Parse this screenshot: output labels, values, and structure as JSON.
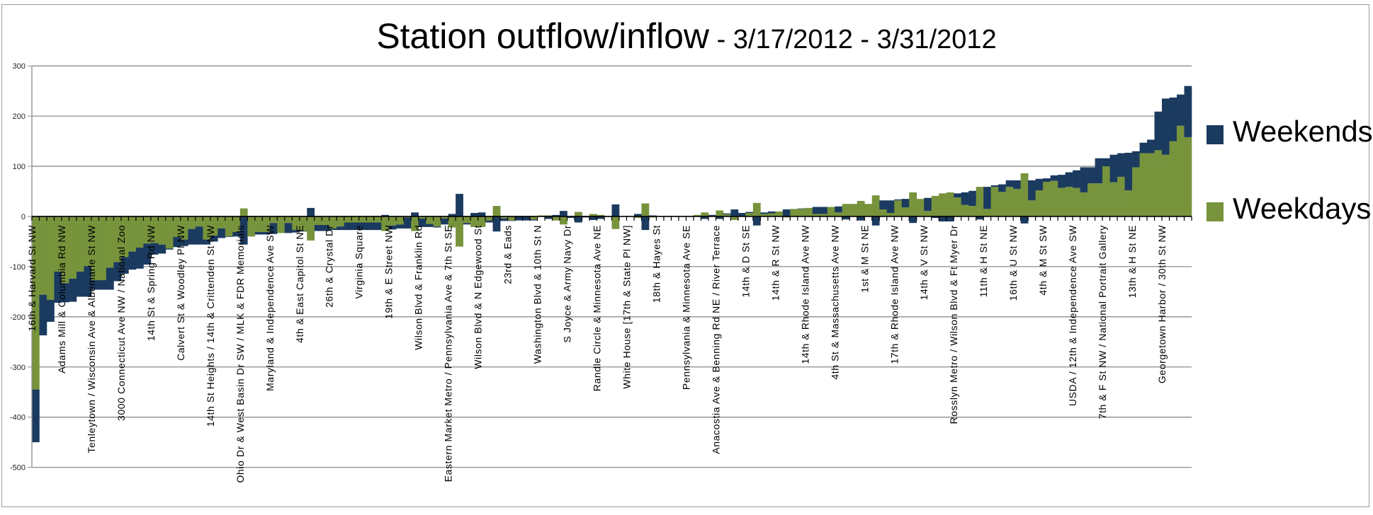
{
  "chart_data": {
    "type": "bar",
    "stacked": true,
    "title": "Station outflow/inflow",
    "subtitle": " - 3/17/2012 - 3/31/2012",
    "xlabel": "",
    "ylabel": "",
    "ylim": [
      -500,
      300
    ],
    "yticks": [
      "300",
      "200",
      "100",
      "0",
      "-100",
      "-200",
      "-300",
      "-400",
      "-500"
    ],
    "ytick_values": [
      300,
      200,
      100,
      0,
      -100,
      -200,
      -300,
      -400,
      -500
    ],
    "grid": true,
    "legend_position": "right",
    "label_every": 4,
    "tick_labels": [
      "16th & Harvard St NW",
      "Adams Mill & Columbia Rd NW",
      "Tenleytown / Wisconsin Ave & Albemarle St NW",
      "3000 Connecticut Ave NW / National Zoo",
      "14th St & Spring Rd NW",
      "Calvert St & Woodley Pl NW",
      "14th St Heights / 14th & Crittenden St NW",
      "Ohio Dr & West Basin Dr SW / MLK & FDR Memorials",
      "Maryland & Independence Ave SW",
      "4th & East Capitol St NE",
      "26th & Crystal Dr",
      "Virginia Square",
      "19th & E Street NW",
      "Wilson Blvd & Franklin Rd",
      "Eastern Market Metro / Pennsylvania Ave & 7th St SE",
      "Wilson Blvd & N Edgewood St",
      "23rd & Eads",
      "Washington Blvd & 10th St N",
      "S Joyce & Army Navy Dr",
      "Randle Circle & Minnesota Ave NE",
      "White House [17th & State Pl NW]",
      "18th & Hayes St",
      "Pennsylvania & Minnesota Ave SE",
      "Anacostia Ave & Benning Rd NE / River Terrace",
      "14th & D St SE",
      "14th & R St NW",
      "14th & Rhode Island Ave NW",
      "4th St & Massachusetts Ave NW",
      "1st & M St NE",
      "17th & Rhode Island Ave NW",
      "14th & V St NW",
      "Rosslyn Metro / Wilson Blvd & Ft Myer Dr",
      "11th & H St NE",
      "16th & U St NW",
      "4th & M St SW",
      "USDA / 12th & Independence Ave SW",
      "7th & F St NW / National Portrait Gallery",
      "13th & H St NE",
      "Georgetown Harbor / 30th St NW"
    ],
    "series": [
      {
        "name": "Weekdays",
        "color": "#77933C",
        "values": [
          -345,
          -156,
          -166,
          -110,
          -133,
          -124,
          -110,
          -99,
          -127,
          -127,
          -102,
          -91,
          -81,
          -70,
          -62,
          -54,
          -53,
          -56,
          -64,
          -41,
          -46,
          -25,
          -20,
          -46,
          -38,
          -24,
          -40,
          -31,
          16,
          -40,
          -31,
          -31,
          -13,
          -33,
          -13,
          -27,
          -29,
          -48,
          -17,
          -17,
          -24,
          -20,
          -12,
          -12,
          -12,
          -12,
          -12,
          -29,
          -18,
          -16,
          -2,
          -29,
          -4,
          -15,
          -20,
          -4,
          -22,
          -60,
          -13,
          -21,
          -21,
          -8,
          21,
          -4,
          -8,
          0,
          0,
          -6,
          2,
          2,
          -8,
          -16,
          -1,
          9,
          0,
          5,
          3,
          0,
          -25,
          0,
          0,
          -3,
          26,
          -2,
          0,
          1,
          0,
          0,
          1,
          3,
          8,
          0,
          12,
          4,
          -7,
          0,
          7,
          27,
          5,
          6,
          10,
          -2,
          15,
          15,
          17,
          5,
          5,
          19,
          8,
          25,
          25,
          31,
          25,
          42,
          14,
          7,
          32,
          18,
          48,
          35,
          11,
          41,
          46,
          48,
          38,
          23,
          21,
          59,
          15,
          59,
          49,
          59,
          55,
          86,
          32,
          52,
          69,
          71,
          57,
          59,
          57,
          48,
          66,
          66,
          100,
          68,
          79,
          52,
          98,
          126,
          126,
          132,
          123,
          150,
          181,
          158
        ]
      },
      {
        "name": "Weekends",
        "color": "#1B3A5F",
        "values": [
          -105,
          -81,
          -44,
          -62,
          -38,
          -46,
          -50,
          -61,
          -19,
          -19,
          -44,
          -38,
          -33,
          -36,
          -42,
          -42,
          -23,
          -18,
          -2,
          -20,
          -13,
          -31,
          -36,
          -10,
          -12,
          -19,
          -1,
          -9,
          -56,
          1,
          -5,
          -5,
          -22,
          0,
          -20,
          -5,
          -1,
          17,
          -12,
          -12,
          -3,
          -7,
          -15,
          -15,
          -15,
          -15,
          -15,
          3,
          -8,
          -8,
          -22,
          8,
          -17,
          -6,
          -2,
          -12,
          5,
          45,
          -3,
          7,
          8,
          -4,
          -30,
          -5,
          -1,
          -8,
          -8,
          -2,
          0,
          -5,
          3,
          11,
          -2,
          -12,
          -2,
          -7,
          -5,
          -1,
          24,
          0,
          0,
          5,
          -27,
          2,
          0,
          0,
          1,
          1,
          0,
          0,
          -5,
          3,
          -5,
          2,
          14,
          7,
          2,
          -18,
          3,
          4,
          0,
          14,
          0,
          1,
          0,
          14,
          14,
          0,
          12,
          -6,
          0,
          -8,
          0,
          -18,
          18,
          25,
          2,
          17,
          -13,
          0,
          26,
          -3,
          -10,
          -10,
          8,
          25,
          30,
          -6,
          44,
          3,
          15,
          13,
          17,
          -14,
          40,
          23,
          7,
          11,
          26,
          29,
          35,
          50,
          32,
          50,
          16,
          55,
          47,
          75,
          32,
          21,
          27,
          77,
          112,
          87,
          62,
          102
        ]
      }
    ]
  }
}
